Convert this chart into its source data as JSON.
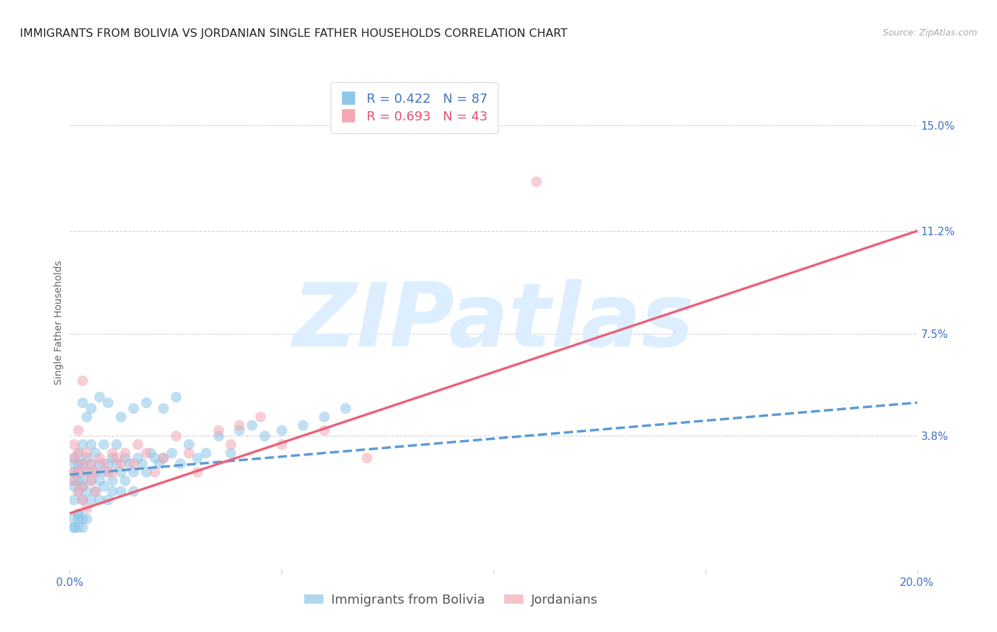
{
  "title": "IMMIGRANTS FROM BOLIVIA VS JORDANIAN SINGLE FATHER HOUSEHOLDS CORRELATION CHART",
  "source": "Source: ZipAtlas.com",
  "ylabel": "Single Father Households",
  "legend_label1": "Immigrants from Bolivia",
  "legend_label2": "Jordanians",
  "r1": 0.422,
  "n1": 87,
  "r2": 0.693,
  "n2": 43,
  "xlim": [
    0.0,
    0.2
  ],
  "ylim": [
    -0.01,
    0.168
  ],
  "x_ticks": [
    0.0,
    0.05,
    0.1,
    0.15,
    0.2
  ],
  "x_tick_labels": [
    "0.0%",
    "",
    "",
    "",
    "20.0%"
  ],
  "y_tick_positions": [
    0.038,
    0.075,
    0.112,
    0.15
  ],
  "y_tick_labels": [
    "3.8%",
    "7.5%",
    "11.2%",
    "15.0%"
  ],
  "color_blue": "#8dc6e8",
  "color_pink": "#f4a7b5",
  "color_blue_line": "#5b9bd5",
  "color_pink_line": "#e8647a",
  "watermark_color": "#ddeeff",
  "grid_color": "#d0d0d0",
  "bolivia_trend_x": [
    0.0,
    0.2
  ],
  "bolivia_trend_y": [
    0.024,
    0.05
  ],
  "jordan_trend_x": [
    0.0,
    0.2
  ],
  "jordan_trend_y": [
    0.01,
    0.112
  ],
  "bolivia_x": [
    0.001,
    0.001,
    0.001,
    0.001,
    0.001,
    0.001,
    0.002,
    0.002,
    0.002,
    0.002,
    0.002,
    0.002,
    0.003,
    0.003,
    0.003,
    0.003,
    0.003,
    0.003,
    0.004,
    0.004,
    0.004,
    0.004,
    0.005,
    0.005,
    0.005,
    0.005,
    0.006,
    0.006,
    0.006,
    0.007,
    0.007,
    0.007,
    0.008,
    0.008,
    0.008,
    0.009,
    0.009,
    0.01,
    0.01,
    0.01,
    0.011,
    0.011,
    0.012,
    0.012,
    0.013,
    0.013,
    0.014,
    0.015,
    0.015,
    0.016,
    0.017,
    0.018,
    0.019,
    0.02,
    0.021,
    0.022,
    0.024,
    0.026,
    0.028,
    0.03,
    0.032,
    0.035,
    0.038,
    0.04,
    0.043,
    0.046,
    0.05,
    0.055,
    0.06,
    0.065,
    0.003,
    0.004,
    0.005,
    0.007,
    0.009,
    0.012,
    0.015,
    0.018,
    0.022,
    0.025,
    0.001,
    0.002,
    0.001,
    0.002,
    0.003,
    0.002,
    0.001
  ],
  "bolivia_y": [
    0.025,
    0.02,
    0.03,
    0.015,
    0.022,
    0.028,
    0.025,
    0.018,
    0.032,
    0.022,
    0.01,
    0.028,
    0.02,
    0.028,
    0.015,
    0.035,
    0.022,
    0.005,
    0.025,
    0.018,
    0.03,
    0.008,
    0.028,
    0.022,
    0.015,
    0.035,
    0.025,
    0.018,
    0.032,
    0.022,
    0.028,
    0.015,
    0.025,
    0.02,
    0.035,
    0.028,
    0.015,
    0.03,
    0.022,
    0.018,
    0.028,
    0.035,
    0.025,
    0.018,
    0.03,
    0.022,
    0.028,
    0.025,
    0.018,
    0.03,
    0.028,
    0.025,
    0.032,
    0.03,
    0.028,
    0.03,
    0.032,
    0.028,
    0.035,
    0.03,
    0.032,
    0.038,
    0.032,
    0.04,
    0.042,
    0.038,
    0.04,
    0.042,
    0.045,
    0.048,
    0.05,
    0.045,
    0.048,
    0.052,
    0.05,
    0.045,
    0.048,
    0.05,
    0.048,
    0.052,
    0.008,
    0.01,
    0.005,
    0.005,
    0.008,
    0.008,
    0.005
  ],
  "jordan_x": [
    0.001,
    0.001,
    0.001,
    0.002,
    0.002,
    0.002,
    0.003,
    0.003,
    0.003,
    0.004,
    0.004,
    0.005,
    0.005,
    0.006,
    0.006,
    0.007,
    0.008,
    0.009,
    0.01,
    0.01,
    0.011,
    0.012,
    0.013,
    0.015,
    0.016,
    0.018,
    0.02,
    0.022,
    0.025,
    0.028,
    0.03,
    0.035,
    0.038,
    0.04,
    0.045,
    0.05,
    0.06,
    0.07,
    0.001,
    0.002,
    0.003,
    0.004,
    0.11
  ],
  "jordan_y": [
    0.025,
    0.022,
    0.03,
    0.025,
    0.018,
    0.032,
    0.02,
    0.028,
    0.015,
    0.025,
    0.032,
    0.022,
    0.028,
    0.025,
    0.018,
    0.03,
    0.028,
    0.025,
    0.025,
    0.032,
    0.03,
    0.028,
    0.032,
    0.028,
    0.035,
    0.032,
    0.025,
    0.03,
    0.038,
    0.032,
    0.025,
    0.04,
    0.035,
    0.042,
    0.045,
    0.035,
    0.04,
    0.03,
    0.035,
    0.04,
    0.058,
    0.012,
    0.13
  ],
  "title_fontsize": 11.5,
  "axis_label_fontsize": 10,
  "tick_fontsize": 11,
  "legend_fontsize": 13
}
